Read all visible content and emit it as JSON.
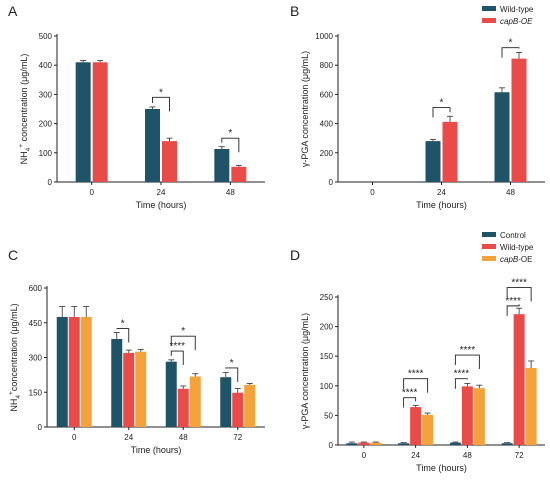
{
  "chart_data": [
    {
      "panel": "A",
      "type": "bar",
      "categories": [
        "0",
        "24",
        "48"
      ],
      "xlabel": "Time (hours)",
      "ylabel": "NH4+ concentration (μg/mL)",
      "ylabel_base": "NH",
      "ylabel_sub": "4",
      "ylabel_sup": "+",
      "ylabel_rest": " concentration (μg/mL)",
      "ylim": [
        0,
        500
      ],
      "yticks": [
        0,
        100,
        200,
        300,
        400,
        500
      ],
      "legend": false,
      "series": [
        {
          "key": "wt",
          "color": "#1f5468",
          "values": [
            410,
            250,
            113
          ],
          "errors": [
            6,
            7,
            8
          ]
        },
        {
          "key": "oe",
          "color": "#e84b48",
          "values": [
            410,
            140,
            52
          ],
          "errors": [
            6,
            10,
            5
          ]
        }
      ],
      "annotations": [
        {
          "text": "*",
          "cat": 1,
          "from": 0,
          "to": 1,
          "level": 290
        },
        {
          "text": "*",
          "cat": 2,
          "from": 0,
          "to": 1,
          "level": 150
        }
      ]
    },
    {
      "panel": "B",
      "type": "bar",
      "categories": [
        "0",
        "24",
        "48"
      ],
      "xlabel": "Time (hours)",
      "ylabel": "γ-PGA concentration (μg/mL)",
      "ylim": [
        0,
        1000
      ],
      "yticks": [
        0,
        200,
        400,
        600,
        800,
        1000
      ],
      "legend": "top-right",
      "series": [
        {
          "key": "wt",
          "name": "Wild-type",
          "italic": false,
          "color": "#1f5468",
          "values": [
            0,
            280,
            615
          ],
          "errors": [
            0,
            12,
            30
          ]
        },
        {
          "key": "oe",
          "name": "capB-OE",
          "italic": true,
          "color": "#e84b48",
          "values": [
            0,
            412,
            845
          ],
          "errors": [
            0,
            38,
            42
          ]
        }
      ],
      "annotations": [
        {
          "text": "*",
          "cat": 1,
          "from": 0,
          "to": 1,
          "level": 510
        },
        {
          "text": "*",
          "cat": 2,
          "from": 0,
          "to": 1,
          "level": 920
        }
      ]
    },
    {
      "panel": "C",
      "type": "bar",
      "categories": [
        "0",
        "24",
        "48",
        "72"
      ],
      "xlabel": "Time (hours)",
      "ylabel": "NH4+concentration (μg/mL)",
      "ylabel_base": "NH",
      "ylabel_sub": "4",
      "ylabel_sup": "+",
      "ylabel_rest": "concentration (μg/mL)",
      "ylim": [
        0,
        600
      ],
      "yticks": [
        0,
        150,
        300,
        450,
        600
      ],
      "legend": false,
      "series": [
        {
          "key": "ctrl",
          "color": "#1f5468",
          "values": [
            475,
            380,
            282,
            215
          ],
          "errors": [
            45,
            28,
            8,
            20
          ]
        },
        {
          "key": "wt",
          "color": "#e84b48",
          "values": [
            475,
            320,
            165,
            148
          ],
          "errors": [
            45,
            12,
            12,
            18
          ]
        },
        {
          "key": "oe",
          "color": "#f4a23b",
          "values": [
            475,
            325,
            218,
            182
          ],
          "errors": [
            45,
            10,
            12,
            6
          ]
        }
      ],
      "annotations": [
        {
          "text": "*",
          "cat": 1,
          "from": 0,
          "to": 1,
          "level": 425
        },
        {
          "text": "****",
          "cat": 2,
          "from": 0,
          "to": 1,
          "level": 328
        },
        {
          "text": "*",
          "cat": 2,
          "from": 0,
          "to": 2,
          "level": 392
        },
        {
          "text": "*",
          "cat": 3,
          "from": 0,
          "to": 1,
          "level": 255
        }
      ]
    },
    {
      "panel": "D",
      "type": "bar",
      "categories": [
        "0",
        "24",
        "48",
        "72"
      ],
      "xlabel": "Time (hours)",
      "ylabel": "γ-PGA concentration (μg/mL)",
      "ylim": [
        0,
        250
      ],
      "yticks": [
        0,
        50,
        100,
        150,
        200,
        250
      ],
      "legend": "top-right",
      "series": [
        {
          "key": "ctrl",
          "name": "Control",
          "italic": false,
          "color": "#1f5468",
          "values": [
            3,
            3,
            4,
            3
          ],
          "errors": [
            2,
            1,
            1,
            1
          ]
        },
        {
          "key": "wt",
          "name": "Wild-type",
          "italic": false,
          "color": "#e84b48",
          "values": [
            4,
            64,
            99,
            221
          ],
          "errors": [
            1,
            3,
            5,
            10
          ]
        },
        {
          "key": "oe",
          "name": "capB-OE",
          "name_italic": "capB",
          "name_rest": "-OE",
          "color": "#f4a23b",
          "values": [
            4,
            51,
            96,
            130
          ],
          "errors": [
            1,
            3,
            5,
            12
          ]
        }
      ],
      "annotations": [
        {
          "text": "****",
          "cat": 1,
          "from": 0,
          "to": 1,
          "level": 80
        },
        {
          "text": "****",
          "cat": 1,
          "from": 0,
          "to": 2,
          "level": 112
        },
        {
          "text": "****",
          "cat": 2,
          "from": 0,
          "to": 1,
          "level": 112
        },
        {
          "text": "****",
          "cat": 2,
          "from": 0,
          "to": 2,
          "level": 152
        },
        {
          "text": "****",
          "cat": 3,
          "from": 0,
          "to": 1,
          "level": 235
        },
        {
          "text": "****",
          "cat": 3,
          "from": 0,
          "to": 2,
          "level": 266
        }
      ]
    }
  ]
}
